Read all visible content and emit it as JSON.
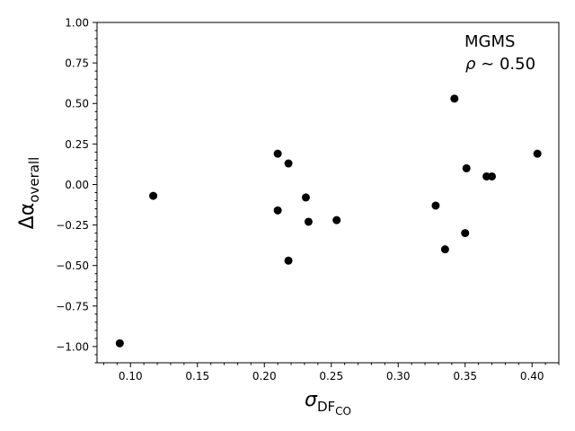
{
  "chart_data": {
    "type": "scatter",
    "title": "",
    "xlabel": "σ_DF_CO",
    "ylabel": "Δα_overall",
    "xlabel_parts": {
      "base": "σ",
      "sub_main": "DF",
      "sub_sub": "CO"
    },
    "ylabel_parts": {
      "base": "Δα",
      "sub": "overall"
    },
    "xlim": [
      0.075,
      0.42
    ],
    "ylim": [
      -1.1,
      1.0
    ],
    "xticks": [
      0.1,
      0.15,
      0.2,
      0.25,
      0.3,
      0.35,
      0.4
    ],
    "xtick_labels": [
      "0.10",
      "0.15",
      "0.20",
      "0.25",
      "0.30",
      "0.35",
      "0.40"
    ],
    "yticks": [
      1.0,
      0.75,
      0.5,
      0.25,
      0.0,
      -0.25,
      -0.5,
      -0.75,
      -1.0
    ],
    "ytick_labels": [
      "1.00",
      "0.75",
      "0.50",
      "0.25",
      "0.00",
      "−0.25",
      "−0.50",
      "−0.75",
      "−1.00"
    ],
    "grid": false,
    "marker_color": "#000000",
    "annotations": {
      "line1": "MGMS",
      "line2_symbol": "ρ",
      "line2_rest": " ∼ 0.50"
    },
    "points": [
      {
        "x": 0.092,
        "y": -0.98
      },
      {
        "x": 0.117,
        "y": -0.07
      },
      {
        "x": 0.21,
        "y": 0.19
      },
      {
        "x": 0.21,
        "y": -0.16
      },
      {
        "x": 0.218,
        "y": 0.13
      },
      {
        "x": 0.218,
        "y": -0.47
      },
      {
        "x": 0.231,
        "y": -0.08
      },
      {
        "x": 0.233,
        "y": -0.23
      },
      {
        "x": 0.254,
        "y": -0.22
      },
      {
        "x": 0.328,
        "y": -0.13
      },
      {
        "x": 0.335,
        "y": -0.4
      },
      {
        "x": 0.342,
        "y": 0.53
      },
      {
        "x": 0.35,
        "y": -0.3
      },
      {
        "x": 0.351,
        "y": 0.1
      },
      {
        "x": 0.366,
        "y": 0.05
      },
      {
        "x": 0.37,
        "y": 0.05
      },
      {
        "x": 0.404,
        "y": 0.19
      }
    ]
  }
}
